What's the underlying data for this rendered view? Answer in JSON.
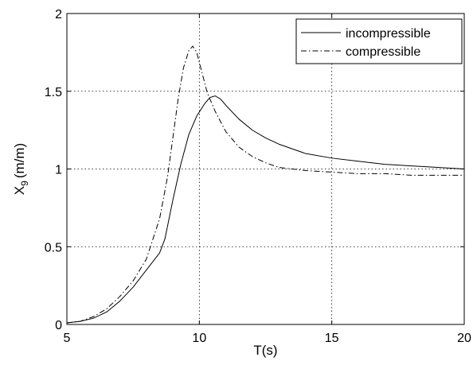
{
  "chart_data": {
    "type": "line",
    "title": "",
    "xlabel": "T(s)",
    "ylabel_main": "X",
    "ylabel_sub": "9",
    "ylabel_unit": "(m/m)",
    "xlim": [
      5,
      20
    ],
    "ylim": [
      0,
      2
    ],
    "xticks": [
      5,
      10,
      15,
      20
    ],
    "xtick_labels": [
      "5",
      "10",
      "15",
      "20"
    ],
    "yticks": [
      0,
      0.5,
      1,
      1.5,
      2
    ],
    "ytick_labels": [
      "0",
      "0.5",
      "1",
      "1.5",
      "2"
    ],
    "grid": true,
    "legend_position": "top-right",
    "series": [
      {
        "name": "incompressible",
        "style": "solid",
        "color": "#000000",
        "x": [
          5.0,
          5.5,
          6.0,
          6.5,
          7.0,
          7.5,
          8.0,
          8.5,
          8.7,
          9.0,
          9.3,
          9.6,
          9.9,
          10.2,
          10.4,
          10.6,
          10.8,
          11.0,
          11.5,
          12.0,
          12.5,
          13.0,
          14.0,
          15.0,
          16.0,
          17.0,
          18.0,
          19.0,
          20.0
        ],
        "y": [
          0.01,
          0.02,
          0.04,
          0.08,
          0.15,
          0.24,
          0.35,
          0.46,
          0.55,
          0.8,
          1.03,
          1.22,
          1.34,
          1.42,
          1.46,
          1.47,
          1.45,
          1.41,
          1.32,
          1.25,
          1.2,
          1.16,
          1.1,
          1.07,
          1.05,
          1.03,
          1.02,
          1.01,
          1.0
        ]
      },
      {
        "name": "compressible",
        "style": "dashdot",
        "color": "#000000",
        "x": [
          5.0,
          5.5,
          6.0,
          6.5,
          7.0,
          7.5,
          8.0,
          8.5,
          8.8,
          9.0,
          9.2,
          9.4,
          9.6,
          9.75,
          9.9,
          10.1,
          10.3,
          10.6,
          11.0,
          11.5,
          12.0,
          12.5,
          13.0,
          14.0,
          15.0,
          16.0,
          17.0,
          18.0,
          19.0,
          20.0
        ],
        "y": [
          0.01,
          0.02,
          0.05,
          0.1,
          0.18,
          0.28,
          0.42,
          0.68,
          0.95,
          1.2,
          1.45,
          1.65,
          1.76,
          1.79,
          1.75,
          1.62,
          1.49,
          1.37,
          1.24,
          1.14,
          1.08,
          1.04,
          1.01,
          0.99,
          0.98,
          0.97,
          0.97,
          0.96,
          0.96,
          0.96
        ]
      }
    ]
  }
}
